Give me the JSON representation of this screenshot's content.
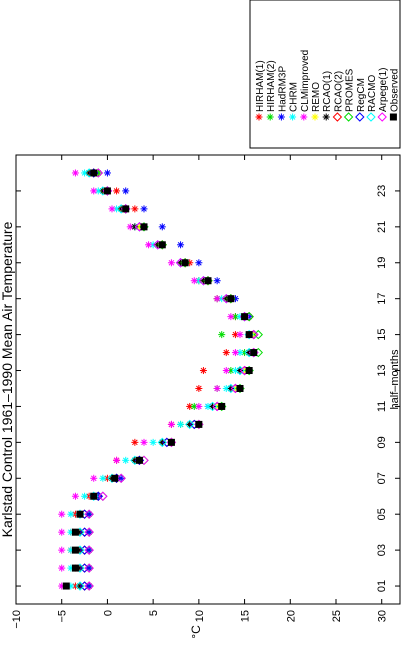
{
  "chart_data": {
    "type": "scatter",
    "title": "Karlstad Control 1961–1990 Mean Air Temperature",
    "xlabel": "half–months",
    "ylabel": "°C",
    "orientation": "rotated 90 degrees counter-clockwise",
    "xlim": [
      0,
      25
    ],
    "ylim": [
      -10,
      32
    ],
    "x_tick_labels": [
      "01",
      "03",
      "05",
      "07",
      "09",
      "11",
      "13",
      "15",
      "17",
      "19",
      "21",
      "23"
    ],
    "x_tick_values": [
      1,
      3,
      5,
      7,
      9,
      11,
      13,
      15,
      17,
      19,
      21,
      23
    ],
    "y_ticks": [
      -10,
      -5,
      0,
      5,
      10,
      15,
      20,
      25,
      30
    ],
    "y_tick_labels": [
      "−10",
      "−5",
      "0",
      "5",
      "10",
      "15",
      "20",
      "25",
      "30"
    ],
    "legend_position": "outside, above plot",
    "x": [
      1,
      2,
      3,
      4,
      5,
      6,
      7,
      8,
      9,
      10,
      11,
      12,
      13,
      14,
      15,
      16,
      17,
      18,
      19,
      20,
      21,
      22,
      23,
      24
    ],
    "series": [
      {
        "name": "HIRHAM(1)",
        "color": "#ff0000",
        "marker": "asterisk",
        "values": [
          -3.5,
          -3.5,
          -4,
          -3.8,
          -3.5,
          -2,
          0,
          1,
          3,
          7,
          9,
          10,
          10.5,
          13,
          14,
          14,
          12,
          10,
          9,
          6,
          4,
          3,
          1,
          -1
        ]
      },
      {
        "name": "HIRHAM(2)",
        "color": "#00dd00",
        "marker": "asterisk",
        "values": [
          -2,
          -2,
          -2,
          -2,
          -2,
          -1,
          1,
          3,
          6,
          8,
          9.5,
          12,
          13.5,
          15,
          12.5,
          14,
          12,
          10,
          8,
          6,
          4,
          2,
          0,
          -1
        ]
      },
      {
        "name": "HadRM3P",
        "color": "#0000ff",
        "marker": "asterisk",
        "values": [
          -2,
          -2,
          -2,
          -2,
          -2,
          -1,
          1.5,
          3,
          6,
          9,
          11,
          13.5,
          14.5,
          15.5,
          16,
          15.5,
          14,
          12,
          10,
          8,
          6,
          4,
          2,
          0
        ]
      },
      {
        "name": "CHRM",
        "color": "#00ffff",
        "marker": "asterisk",
        "values": [
          -4,
          -4,
          -4,
          -4,
          -4,
          -2.5,
          -0.5,
          2,
          5,
          8,
          11,
          13,
          14,
          14.5,
          15.5,
          14.5,
          12.5,
          10,
          8,
          5,
          3,
          1,
          -1,
          -2.5
        ]
      },
      {
        "name": "CLMimproved",
        "color": "#ff00ff",
        "marker": "asterisk",
        "values": [
          -5,
          -5,
          -5,
          -5,
          -5,
          -3.5,
          -1.5,
          1,
          4,
          7,
          10,
          12,
          13,
          14,
          14.5,
          13.5,
          12,
          9.5,
          7,
          4.5,
          2.5,
          0.5,
          -1.5,
          -3.5
        ]
      },
      {
        "name": "REMO",
        "color": "#ffff00",
        "marker": "asterisk",
        "values": [
          -3,
          -3,
          -3,
          -3,
          -3,
          -1.5,
          0.5,
          3,
          6,
          9,
          12,
          14,
          15,
          16,
          16,
          15,
          13,
          10.5,
          8,
          5.5,
          3.5,
          1.5,
          -0.5,
          -2
        ]
      },
      {
        "name": "RCAO(1)",
        "color": "#000000",
        "marker": "asterisk",
        "values": [
          -3,
          -3,
          -3,
          -3,
          -3,
          -1.5,
          0.5,
          3,
          6,
          9,
          11.5,
          13.5,
          14.5,
          15.5,
          15.5,
          15,
          13,
          10.5,
          8,
          5.5,
          3,
          1.5,
          -0.5,
          -2
        ]
      },
      {
        "name": "RCAO(2)",
        "color": "#ff0000",
        "marker": "diamond",
        "values": [
          -2.5,
          -2.5,
          -2.5,
          -2.5,
          -2.5,
          -1,
          1,
          3.5,
          6.5,
          9.5,
          12,
          14,
          15,
          16,
          16,
          15.5,
          13.5,
          11,
          8.5,
          6,
          3.5,
          2,
          0,
          -1.5
        ]
      },
      {
        "name": "PROMES",
        "color": "#00dd00",
        "marker": "diamond",
        "values": [
          -2,
          -2,
          -2,
          -2,
          -2,
          -0.5,
          1.5,
          4,
          7,
          10,
          12.5,
          14.5,
          15.5,
          16.5,
          16.5,
          15.5,
          13.5,
          11,
          8.5,
          6,
          4,
          2,
          0,
          -1
        ]
      },
      {
        "name": "RegCM",
        "color": "#0000ff",
        "marker": "diamond",
        "values": [
          -2.5,
          -2.5,
          -2.5,
          -2.5,
          -2.5,
          -1,
          1,
          3.5,
          6.5,
          9.5,
          12,
          14,
          15,
          16,
          16,
          15,
          13,
          10.5,
          8,
          5.5,
          3.5,
          2,
          0,
          -1.5
        ]
      },
      {
        "name": "RACMO",
        "color": "#00ffff",
        "marker": "diamond",
        "values": [
          -3,
          -3,
          -3,
          -3,
          -3,
          -1.5,
          0.5,
          3,
          6,
          9,
          11.5,
          13.5,
          14.5,
          15.5,
          15.5,
          15,
          13,
          10.5,
          8,
          5.5,
          3.5,
          1.5,
          -0.5,
          -2
        ]
      },
      {
        "name": "Arpege(1)",
        "color": "#ff00ff",
        "marker": "diamond",
        "values": [
          -2,
          -2,
          -2,
          -2,
          -2,
          -0.5,
          1.5,
          4,
          7,
          10,
          12,
          14,
          15,
          16,
          16,
          15,
          13,
          10.5,
          8,
          5.5,
          3.5,
          2,
          0,
          -1
        ]
      },
      {
        "name": "Observed",
        "color": "#000000",
        "marker": "square",
        "values": [
          -4.5,
          -3.5,
          -3.5,
          -3.5,
          -3,
          -1.5,
          0.8,
          3.5,
          7,
          10,
          12.5,
          14.5,
          15.5,
          16,
          15.5,
          15,
          13.5,
          11,
          8.5,
          6,
          4,
          2,
          0,
          -1.5
        ]
      }
    ]
  }
}
